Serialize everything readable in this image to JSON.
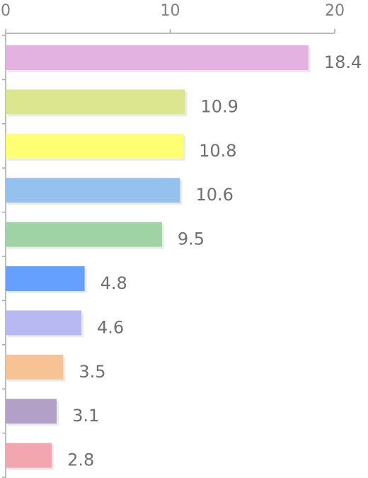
{
  "chart_data": {
    "type": "bar",
    "orientation": "horizontal",
    "xlim": [
      0,
      20
    ],
    "x_ticks": [
      0,
      10,
      20
    ],
    "x_tick_labels": [
      "0",
      "10",
      "20"
    ],
    "axis_position": "top",
    "grid": false,
    "legend": "none",
    "values": [
      18.4,
      10.9,
      10.8,
      10.6,
      9.5,
      4.8,
      4.6,
      3.5,
      3.1,
      2.8
    ],
    "data_labels": [
      "18.4",
      "10.9",
      "10.8",
      "10.6",
      "9.5",
      "4.8",
      "4.6",
      "3.5",
      "3.1",
      "2.8"
    ],
    "colors": [
      "#e3b2e0",
      "#dbe68f",
      "#ffff73",
      "#95c1ee",
      "#9fd2a5",
      "#66a0ff",
      "#b8b9f3",
      "#f7c395",
      "#b3a0c8",
      "#f2a6b0"
    ],
    "axis_color": "#a6a6a6",
    "label_color": "#6f6f6f"
  }
}
